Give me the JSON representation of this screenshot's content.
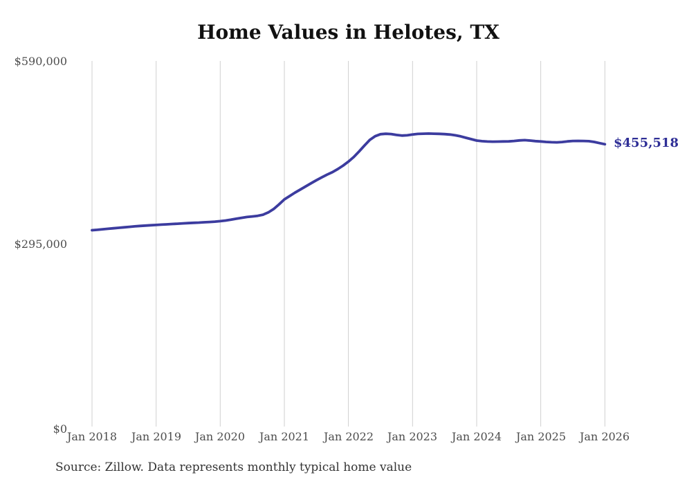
{
  "title": "Home Values in Helotes, TX",
  "source_note": "Source: Zillow. Data represents monthly typical home value",
  "colors": {
    "line": "#3c3c9f",
    "end_label": "#2e2e96",
    "gridline": "#cfcfcf",
    "axis_text": "#4d4d4d",
    "title_text": "#111111",
    "source_text": "#333333",
    "background": "#ffffff"
  },
  "chart_data": {
    "type": "line",
    "title": "Home Values in Helotes, TX",
    "xlabel": "",
    "ylabel": "",
    "frequency": "monthly",
    "x_start": "2018-01",
    "x_end": "2026-01",
    "x_tick_labels": [
      "Jan 2018",
      "Jan 2019",
      "Jan 2020",
      "Jan 2021",
      "Jan 2022",
      "Jan 2023",
      "Jan 2024",
      "Jan 2025",
      "Jan 2026"
    ],
    "y_ticks": [
      {
        "value": 590000,
        "label": "$590,000"
      },
      {
        "value": 295000,
        "label": "$295,000"
      },
      {
        "value": 0,
        "label": "$0"
      }
    ],
    "ylim": [
      0,
      590000
    ],
    "grid": "vertical-only",
    "legend": "none",
    "end_annotation": "$455,518",
    "end_value": 455518,
    "series": [
      {
        "name": "Typical home value",
        "color": "#3c3c9f",
        "values": [
          316800,
          317500,
          318300,
          319100,
          319900,
          320700,
          321500,
          322300,
          323000,
          323700,
          324300,
          324800,
          325300,
          325800,
          326300,
          326800,
          327300,
          327800,
          328300,
          328700,
          329100,
          329600,
          330100,
          330700,
          331400,
          332400,
          333800,
          335300,
          336800,
          338100,
          339000,
          340000,
          341800,
          345500,
          351000,
          358500,
          366500,
          372000,
          377500,
          382500,
          387500,
          392500,
          397500,
          402000,
          406500,
          410500,
          415500,
          421000,
          427500,
          435000,
          444000,
          453500,
          462500,
          468500,
          471800,
          472500,
          472000,
          470500,
          469500,
          470000,
          471200,
          472200,
          472600,
          472800,
          472600,
          472300,
          471900,
          471200,
          470000,
          468300,
          466000,
          463700,
          461500,
          460500,
          459900,
          459700,
          459800,
          460000,
          460200,
          460800,
          461700,
          462200,
          461500,
          460600,
          460000,
          459300,
          458800,
          458600,
          459200,
          460100,
          460800,
          460900,
          460800,
          460500,
          459300,
          457400,
          455518
        ]
      }
    ]
  }
}
